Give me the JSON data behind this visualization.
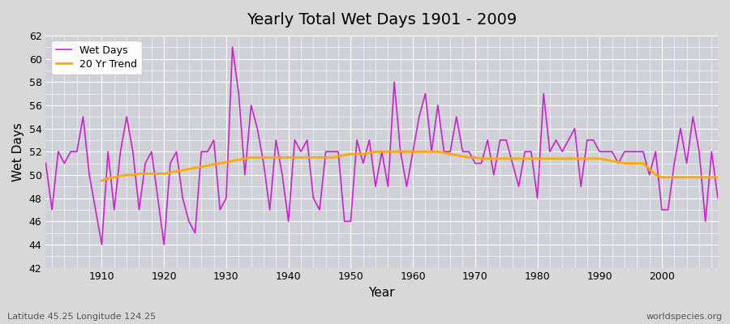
{
  "title": "Yearly Total Wet Days 1901 - 2009",
  "xlabel": "Year",
  "ylabel": "Wet Days",
  "footnote_left": "Latitude 45.25 Longitude 124.25",
  "footnote_right": "worldspecies.org",
  "bg_color": "#d8d8d8",
  "plot_bg_color": "#d0d0d8",
  "wet_days_color": "#cc22cc",
  "trend_color": "#ffaa00",
  "ylim": [
    42,
    62
  ],
  "xlim": [
    1901,
    2009
  ],
  "years": [
    1901,
    1902,
    1903,
    1904,
    1905,
    1906,
    1907,
    1908,
    1909,
    1910,
    1911,
    1912,
    1913,
    1914,
    1915,
    1916,
    1917,
    1918,
    1919,
    1920,
    1921,
    1922,
    1923,
    1924,
    1925,
    1926,
    1927,
    1928,
    1929,
    1930,
    1931,
    1932,
    1933,
    1934,
    1935,
    1936,
    1937,
    1938,
    1939,
    1940,
    1941,
    1942,
    1943,
    1944,
    1945,
    1946,
    1947,
    1948,
    1949,
    1950,
    1951,
    1952,
    1953,
    1954,
    1955,
    1956,
    1957,
    1958,
    1959,
    1960,
    1961,
    1962,
    1963,
    1964,
    1965,
    1966,
    1967,
    1968,
    1969,
    1970,
    1971,
    1972,
    1973,
    1974,
    1975,
    1976,
    1977,
    1978,
    1979,
    1980,
    1981,
    1982,
    1983,
    1984,
    1985,
    1986,
    1987,
    1988,
    1989,
    1990,
    1991,
    1992,
    1993,
    1994,
    1995,
    1996,
    1997,
    1998,
    1999,
    2000,
    2001,
    2002,
    2003,
    2004,
    2005,
    2006,
    2007,
    2008,
    2009
  ],
  "wet_days": [
    51,
    47,
    52,
    51,
    52,
    52,
    55,
    50,
    47,
    44,
    52,
    47,
    52,
    55,
    52,
    47,
    51,
    52,
    48,
    44,
    51,
    52,
    48,
    46,
    45,
    52,
    52,
    53,
    47,
    48,
    61,
    57,
    50,
    56,
    54,
    51,
    47,
    53,
    50,
    46,
    53,
    52,
    53,
    48,
    47,
    52,
    52,
    52,
    46,
    46,
    53,
    51,
    53,
    49,
    52,
    49,
    58,
    52,
    49,
    52,
    55,
    57,
    52,
    56,
    52,
    52,
    55,
    52,
    52,
    51,
    51,
    53,
    50,
    53,
    53,
    51,
    49,
    52,
    52,
    48,
    57,
    52,
    53,
    52,
    53,
    54,
    49,
    53,
    53,
    52,
    52,
    52,
    51,
    52,
    52,
    52,
    52,
    50,
    52,
    47,
    47,
    51,
    54,
    51,
    55,
    52,
    46,
    52,
    48
  ],
  "trend_values": [
    null,
    null,
    null,
    null,
    null,
    null,
    null,
    null,
    null,
    49.5,
    49.7,
    49.8,
    49.9,
    50.0,
    50.0,
    50.1,
    50.1,
    50.1,
    50.1,
    50.1,
    50.2,
    50.3,
    50.4,
    50.5,
    50.6,
    50.7,
    50.8,
    50.9,
    51.0,
    51.1,
    51.2,
    51.3,
    51.4,
    51.5,
    51.5,
    51.5,
    51.5,
    51.5,
    51.5,
    51.5,
    51.5,
    51.5,
    51.5,
    51.5,
    51.5,
    51.5,
    51.5,
    51.6,
    51.7,
    51.8,
    51.8,
    51.8,
    51.9,
    52.0,
    52.0,
    52.0,
    52.0,
    52.0,
    52.0,
    52.0,
    52.0,
    52.0,
    52.0,
    52.0,
    51.9,
    51.8,
    51.7,
    51.6,
    51.5,
    51.5,
    51.4,
    51.4,
    51.4,
    51.4,
    51.4,
    51.4,
    51.4,
    51.4,
    51.4,
    51.4,
    51.4,
    51.4,
    51.4,
    51.4,
    51.4,
    51.4,
    51.4,
    51.4,
    51.4,
    51.4,
    51.3,
    51.2,
    51.1,
    51.0,
    51.0,
    51.0,
    51.0,
    50.5,
    50.0,
    49.8,
    49.8,
    49.8,
    49.8,
    49.8,
    49.8,
    49.8,
    49.8,
    49.8,
    49.8
  ]
}
